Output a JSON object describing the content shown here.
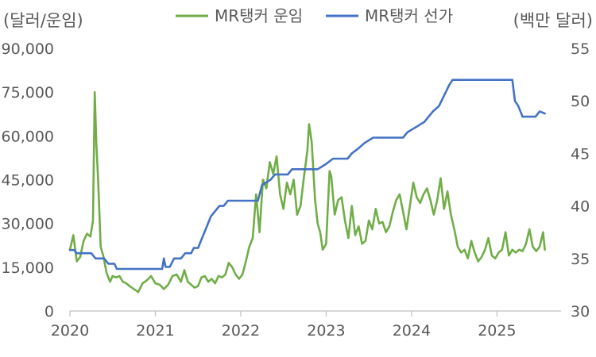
{
  "chart_data": {
    "type": "line",
    "left_axis_unit": "(달러/운임)",
    "right_axis_unit": "(백만 달러)",
    "left_axis": {
      "min": 0,
      "max": 90000,
      "ticks": [
        "0",
        "15,000",
        "30,000",
        "45,000",
        "60,000",
        "75,000",
        "90,000"
      ]
    },
    "right_axis": {
      "min": 30,
      "max": 55,
      "ticks": [
        "30",
        "35",
        "40",
        "45",
        "50",
        "55"
      ]
    },
    "x_axis": {
      "min": 2020,
      "max": 2025.75,
      "ticks": [
        "2020",
        "2021",
        "2022",
        "2023",
        "2024",
        "2025"
      ]
    },
    "legend_position": "top",
    "series": [
      {
        "name": "MR탱커 운임",
        "axis": "left",
        "color": "#70ad47",
        "points": [
          [
            2020.0,
            21000
          ],
          [
            2020.04,
            26000
          ],
          [
            2020.08,
            17000
          ],
          [
            2020.12,
            18500
          ],
          [
            2020.16,
            24000
          ],
          [
            2020.2,
            26500
          ],
          [
            2020.24,
            25500
          ],
          [
            2020.27,
            31000
          ],
          [
            2020.29,
            75000
          ],
          [
            2020.31,
            57000
          ],
          [
            2020.33,
            45000
          ],
          [
            2020.36,
            22000
          ],
          [
            2020.39,
            19000
          ],
          [
            2020.43,
            13000
          ],
          [
            2020.47,
            10000
          ],
          [
            2020.5,
            12000
          ],
          [
            2020.54,
            11500
          ],
          [
            2020.58,
            12000
          ],
          [
            2020.62,
            10000
          ],
          [
            2020.66,
            9500
          ],
          [
            2020.7,
            8500
          ],
          [
            2020.75,
            7500
          ],
          [
            2020.8,
            6500
          ],
          [
            2020.85,
            9500
          ],
          [
            2020.9,
            10500
          ],
          [
            2020.95,
            12000
          ],
          [
            2021.0,
            9500
          ],
          [
            2021.05,
            9000
          ],
          [
            2021.1,
            7500
          ],
          [
            2021.15,
            9000
          ],
          [
            2021.2,
            12000
          ],
          [
            2021.25,
            12500
          ],
          [
            2021.3,
            10000
          ],
          [
            2021.34,
            14000
          ],
          [
            2021.38,
            10000
          ],
          [
            2021.42,
            9000
          ],
          [
            2021.46,
            8000
          ],
          [
            2021.5,
            8500
          ],
          [
            2021.54,
            11500
          ],
          [
            2021.58,
            12000
          ],
          [
            2021.62,
            10000
          ],
          [
            2021.66,
            11000
          ],
          [
            2021.7,
            9500
          ],
          [
            2021.74,
            12000
          ],
          [
            2021.78,
            11500
          ],
          [
            2021.82,
            12500
          ],
          [
            2021.86,
            16500
          ],
          [
            2021.9,
            15000
          ],
          [
            2021.94,
            12500
          ],
          [
            2021.98,
            11000
          ],
          [
            2022.02,
            12500
          ],
          [
            2022.06,
            17000
          ],
          [
            2022.1,
            22000
          ],
          [
            2022.14,
            25000
          ],
          [
            2022.18,
            40000
          ],
          [
            2022.22,
            27000
          ],
          [
            2022.26,
            45000
          ],
          [
            2022.3,
            42000
          ],
          [
            2022.34,
            51000
          ],
          [
            2022.38,
            47000
          ],
          [
            2022.42,
            53000
          ],
          [
            2022.46,
            40000
          ],
          [
            2022.5,
            35000
          ],
          [
            2022.54,
            44000
          ],
          [
            2022.58,
            40000
          ],
          [
            2022.62,
            45000
          ],
          [
            2022.66,
            33000
          ],
          [
            2022.7,
            36000
          ],
          [
            2022.74,
            46000
          ],
          [
            2022.78,
            55000
          ],
          [
            2022.8,
            64000
          ],
          [
            2022.83,
            58000
          ],
          [
            2022.87,
            38000
          ],
          [
            2022.9,
            30000
          ],
          [
            2022.93,
            27000
          ],
          [
            2022.96,
            21000
          ],
          [
            2023.0,
            23000
          ],
          [
            2023.04,
            48000
          ],
          [
            2023.06,
            46000
          ],
          [
            2023.1,
            33000
          ],
          [
            2023.14,
            38000
          ],
          [
            2023.18,
            39000
          ],
          [
            2023.22,
            31000
          ],
          [
            2023.26,
            25000
          ],
          [
            2023.3,
            36000
          ],
          [
            2023.34,
            26000
          ],
          [
            2023.38,
            29000
          ],
          [
            2023.42,
            23000
          ],
          [
            2023.46,
            24000
          ],
          [
            2023.5,
            31000
          ],
          [
            2023.54,
            28000
          ],
          [
            2023.58,
            35000
          ],
          [
            2023.62,
            30000
          ],
          [
            2023.66,
            30500
          ],
          [
            2023.7,
            27000
          ],
          [
            2023.74,
            29000
          ],
          [
            2023.78,
            34000
          ],
          [
            2023.82,
            38000
          ],
          [
            2023.86,
            40000
          ],
          [
            2023.9,
            34000
          ],
          [
            2023.94,
            28000
          ],
          [
            2023.98,
            36000
          ],
          [
            2024.02,
            44000
          ],
          [
            2024.06,
            39000
          ],
          [
            2024.1,
            37000
          ],
          [
            2024.14,
            40000
          ],
          [
            2024.18,
            42000
          ],
          [
            2024.22,
            38000
          ],
          [
            2024.26,
            33000
          ],
          [
            2024.3,
            38000
          ],
          [
            2024.34,
            45500
          ],
          [
            2024.38,
            35000
          ],
          [
            2024.42,
            41000
          ],
          [
            2024.46,
            33000
          ],
          [
            2024.5,
            28000
          ],
          [
            2024.54,
            22000
          ],
          [
            2024.58,
            20000
          ],
          [
            2024.62,
            21000
          ],
          [
            2024.66,
            18000
          ],
          [
            2024.7,
            24000
          ],
          [
            2024.74,
            20000
          ],
          [
            2024.78,
            17000
          ],
          [
            2024.82,
            18500
          ],
          [
            2024.86,
            21000
          ],
          [
            2024.9,
            25000
          ],
          [
            2024.94,
            19000
          ],
          [
            2024.98,
            18000
          ],
          [
            2025.02,
            20000
          ],
          [
            2025.06,
            21000
          ],
          [
            2025.1,
            27000
          ],
          [
            2025.14,
            19000
          ],
          [
            2025.18,
            21000
          ],
          [
            2025.22,
            20000
          ],
          [
            2025.26,
            21000
          ],
          [
            2025.3,
            20500
          ],
          [
            2025.34,
            23000
          ],
          [
            2025.38,
            28000
          ],
          [
            2025.42,
            22000
          ],
          [
            2025.46,
            20500
          ],
          [
            2025.5,
            22000
          ],
          [
            2025.54,
            27000
          ],
          [
            2025.56,
            21000
          ]
        ]
      },
      {
        "name": "MR탱커 선가",
        "axis": "right",
        "color": "#4472c4",
        "points": [
          [
            2020.0,
            35.8
          ],
          [
            2020.05,
            35.8
          ],
          [
            2020.08,
            35.5
          ],
          [
            2020.25,
            35.5
          ],
          [
            2020.3,
            35.0
          ],
          [
            2020.4,
            35.0
          ],
          [
            2020.45,
            34.5
          ],
          [
            2020.52,
            34.5
          ],
          [
            2020.55,
            34.0
          ],
          [
            2021.08,
            34.0
          ],
          [
            2021.1,
            35.0
          ],
          [
            2021.12,
            34.2
          ],
          [
            2021.17,
            34.2
          ],
          [
            2021.22,
            35.0
          ],
          [
            2021.3,
            35.0
          ],
          [
            2021.35,
            35.5
          ],
          [
            2021.42,
            35.5
          ],
          [
            2021.45,
            36.0
          ],
          [
            2021.5,
            36.0
          ],
          [
            2021.55,
            37.0
          ],
          [
            2021.6,
            38.0
          ],
          [
            2021.65,
            39.0
          ],
          [
            2021.7,
            39.5
          ],
          [
            2021.75,
            40.0
          ],
          [
            2021.8,
            40.0
          ],
          [
            2021.85,
            40.5
          ],
          [
            2022.2,
            40.5
          ],
          [
            2022.25,
            42.0
          ],
          [
            2022.35,
            42.5
          ],
          [
            2022.4,
            43.0
          ],
          [
            2022.55,
            43.0
          ],
          [
            2022.6,
            43.5
          ],
          [
            2022.75,
            43.5
          ],
          [
            2022.9,
            43.5
          ],
          [
            2023.0,
            44.0
          ],
          [
            2023.08,
            44.5
          ],
          [
            2023.25,
            44.5
          ],
          [
            2023.3,
            45.0
          ],
          [
            2023.38,
            45.5
          ],
          [
            2023.45,
            46.0
          ],
          [
            2023.55,
            46.5
          ],
          [
            2023.7,
            46.5
          ],
          [
            2023.9,
            46.5
          ],
          [
            2023.95,
            47.0
          ],
          [
            2024.05,
            47.5
          ],
          [
            2024.15,
            48.0
          ],
          [
            2024.25,
            49.0
          ],
          [
            2024.32,
            49.5
          ],
          [
            2024.38,
            50.5
          ],
          [
            2024.44,
            51.5
          ],
          [
            2024.48,
            52.0
          ],
          [
            2025.18,
            52.0
          ],
          [
            2025.21,
            50.0
          ],
          [
            2025.25,
            49.5
          ],
          [
            2025.3,
            48.5
          ],
          [
            2025.45,
            48.5
          ],
          [
            2025.5,
            49.0
          ],
          [
            2025.56,
            48.8
          ]
        ]
      }
    ]
  }
}
